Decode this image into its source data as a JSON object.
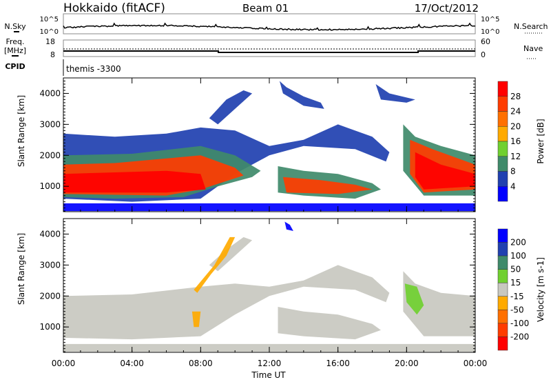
{
  "header": {
    "station": "Hokkaido (fitACF)",
    "beam": "Beam 01",
    "date": "17/Oct/2012"
  },
  "nsky": {
    "label": "N.Sky",
    "ticks": [
      "10^5",
      "10^0"
    ],
    "right_label": "N.Search",
    "right_ticks": [
      "10^5",
      "10^0"
    ]
  },
  "freq": {
    "label1": "Freq.",
    "label2": "[MHz]",
    "ticks": [
      "18",
      "8"
    ],
    "right_label": "Nave",
    "right_ticks": [
      "60",
      "0"
    ]
  },
  "cpid": {
    "label": "CPID",
    "value": "themis -3300"
  },
  "chart_data": [
    {
      "type": "heatmap",
      "title": "Power",
      "ylabel": "Slant Range [km]",
      "xlabel": "Time UT",
      "xlim": [
        0,
        24
      ],
      "ylim": [
        180,
        4500
      ],
      "yticks": [
        "1000",
        "2000",
        "3000",
        "4000"
      ],
      "xticks": [
        "00:00",
        "04:00",
        "08:00",
        "12:00",
        "16:00",
        "20:00",
        "00:00"
      ],
      "colorbar": {
        "label": "Power [dB]",
        "ticks": [
          "4",
          "8",
          "12",
          "16",
          "20",
          "24",
          "28"
        ],
        "colors": [
          "#0000ff",
          "#2040b0",
          "#3f8a6a",
          "#70d030",
          "#ffaa00",
          "#ff7000",
          "#ff3c00",
          "#ff0000"
        ]
      },
      "regions": [
        {
          "level": 1,
          "pts": [
            [
              0,
              2700
            ],
            [
              3,
              2600
            ],
            [
              6,
              2700
            ],
            [
              8,
              2900
            ],
            [
              10,
              2800
            ],
            [
              12,
              2300
            ],
            [
              14,
              2500
            ],
            [
              16,
              3000
            ],
            [
              18,
              2600
            ],
            [
              19,
              2100
            ],
            [
              18.8,
              1800
            ],
            [
              17,
              2200
            ],
            [
              14,
              2300
            ],
            [
              12,
              2000
            ],
            [
              10,
              1400
            ],
            [
              8,
              600
            ],
            [
              4,
              500
            ],
            [
              0,
              600
            ]
          ]
        },
        {
          "level": 2,
          "pts": [
            [
              0,
              2000
            ],
            [
              4,
              2050
            ],
            [
              8,
              2300
            ],
            [
              10,
              2000
            ],
            [
              11.5,
              1500
            ],
            [
              11,
              1300
            ],
            [
              9,
              1000
            ],
            [
              7,
              650
            ],
            [
              3,
              600
            ],
            [
              0,
              650
            ]
          ]
        },
        {
          "level": 6,
          "pts": [
            [
              0,
              1700
            ],
            [
              3,
              1750
            ],
            [
              6,
              1900
            ],
            [
              8,
              2000
            ],
            [
              10,
              1600
            ],
            [
              10.5,
              1350
            ],
            [
              8,
              900
            ],
            [
              6,
              700
            ],
            [
              0,
              750
            ]
          ]
        },
        {
          "level": 7,
          "pts": [
            [
              0,
              1400
            ],
            [
              3,
              1450
            ],
            [
              6,
              1500
            ],
            [
              8,
              1400
            ],
            [
              8.3,
              900
            ],
            [
              6,
              800
            ],
            [
              0,
              800
            ]
          ]
        },
        {
          "level": 2,
          "pts": [
            [
              12.5,
              1650
            ],
            [
              14,
              1500
            ],
            [
              16,
              1400
            ],
            [
              18,
              1100
            ],
            [
              18.5,
              900
            ],
            [
              17,
              600
            ],
            [
              14,
              700
            ],
            [
              12.5,
              800
            ]
          ]
        },
        {
          "level": 6,
          "pts": [
            [
              12.8,
              1300
            ],
            [
              15,
              1200
            ],
            [
              17,
              1050
            ],
            [
              18,
              900
            ],
            [
              16,
              750
            ],
            [
              13,
              800
            ]
          ]
        },
        {
          "level": 2,
          "pts": [
            [
              19.8,
              3000
            ],
            [
              20.5,
              2600
            ],
            [
              22,
              2300
            ],
            [
              24,
              2000
            ],
            [
              24,
              700
            ],
            [
              21,
              700
            ],
            [
              19.8,
              1500
            ]
          ]
        },
        {
          "level": 6,
          "pts": [
            [
              20.2,
              2500
            ],
            [
              21.5,
              2200
            ],
            [
              24,
              1700
            ],
            [
              24,
              900
            ],
            [
              21,
              800
            ],
            [
              20.2,
              1400
            ]
          ]
        },
        {
          "level": 7,
          "pts": [
            [
              20.5,
              2100
            ],
            [
              22,
              1700
            ],
            [
              24,
              1400
            ],
            [
              24,
              1000
            ],
            [
              21,
              900
            ],
            [
              20.5,
              1300
            ]
          ]
        },
        {
          "level": 1,
          "pts": [
            [
              8.5,
              3200
            ],
            [
              9.5,
              3800
            ],
            [
              10.5,
              4100
            ],
            [
              11,
              4000
            ],
            [
              10,
              3500
            ],
            [
              9,
              3000
            ]
          ]
        },
        {
          "level": 1,
          "pts": [
            [
              12.6,
              4400
            ],
            [
              13,
              4200
            ],
            [
              14,
              3900
            ],
            [
              15,
              3700
            ],
            [
              15.2,
              3500
            ],
            [
              14,
              3600
            ],
            [
              12.8,
              4000
            ]
          ]
        },
        {
          "level": 1,
          "pts": [
            [
              18.2,
              4300
            ],
            [
              19,
              4000
            ],
            [
              20.5,
              3800
            ],
            [
              20,
              3700
            ],
            [
              18.5,
              3800
            ]
          ]
        },
        {
          "level": 0,
          "pts": [
            [
              0,
              450
            ],
            [
              24,
              450
            ],
            [
              24,
              200
            ],
            [
              0,
              200
            ]
          ]
        }
      ]
    },
    {
      "type": "heatmap",
      "title": "Velocity",
      "ylabel": "Slant Range [km]",
      "xlabel": "Time UT",
      "xlim": [
        0,
        24
      ],
      "ylim": [
        180,
        4500
      ],
      "yticks": [
        "1000",
        "2000",
        "3000",
        "4000"
      ],
      "xticks": [
        "00:00",
        "04:00",
        "08:00",
        "12:00",
        "16:00",
        "20:00",
        "00:00"
      ],
      "colorbar": {
        "label": "Velocity [m s-1]",
        "ticks": [
          "200",
          "100",
          "50",
          "15",
          "-15",
          "-50",
          "-100",
          "-200"
        ],
        "colors": [
          "#0000ff",
          "#2040b0",
          "#3f8a6a",
          "#70d030",
          "#c8c8c0",
          "#ffaa00",
          "#ff7000",
          "#ff3c00",
          "#ff0000"
        ]
      },
      "regions": [
        {
          "level": 4,
          "pts": [
            [
              0,
              2000
            ],
            [
              4,
              2050
            ],
            [
              8,
              2300
            ],
            [
              10,
              2400
            ],
            [
              12,
              2300
            ],
            [
              14,
              2500
            ],
            [
              16,
              3000
            ],
            [
              18,
              2600
            ],
            [
              19,
              2100
            ],
            [
              18.8,
              1800
            ],
            [
              17,
              2200
            ],
            [
              14,
              2300
            ],
            [
              12,
              2000
            ],
            [
              10,
              1400
            ],
            [
              8,
              700
            ],
            [
              4,
              600
            ],
            [
              0,
              650
            ]
          ]
        },
        {
          "level": 4,
          "pts": [
            [
              12.5,
              1650
            ],
            [
              14,
              1500
            ],
            [
              16,
              1400
            ],
            [
              18,
              1100
            ],
            [
              18.5,
              900
            ],
            [
              17,
              600
            ],
            [
              14,
              700
            ],
            [
              12.5,
              800
            ]
          ]
        },
        {
          "level": 4,
          "pts": [
            [
              19.8,
              2800
            ],
            [
              20.5,
              2400
            ],
            [
              22,
              2100
            ],
            [
              24,
              2000
            ],
            [
              24,
              700
            ],
            [
              21,
              700
            ],
            [
              19.8,
              1500
            ]
          ]
        },
        {
          "level": 4,
          "pts": [
            [
              8.5,
              3000
            ],
            [
              9.5,
              3500
            ],
            [
              10.5,
              3900
            ],
            [
              11,
              3800
            ],
            [
              10,
              3300
            ],
            [
              9,
              2800
            ]
          ]
        },
        {
          "level": 5,
          "pts": [
            [
              7.8,
              2100
            ],
            [
              8.6,
              2700
            ],
            [
              9.5,
              3300
            ],
            [
              10,
              3900
            ],
            [
              9.7,
              3900
            ],
            [
              8.8,
              3000
            ],
            [
              7.6,
              2200
            ]
          ]
        },
        {
          "level": 5,
          "pts": [
            [
              7.5,
              1500
            ],
            [
              8,
              1500
            ],
            [
              7.9,
              1000
            ],
            [
              7.6,
              1000
            ]
          ]
        },
        {
          "level": 3,
          "pts": [
            [
              19.9,
              2400
            ],
            [
              20.6,
              2300
            ],
            [
              21,
              1700
            ],
            [
              20.6,
              1400
            ],
            [
              20,
              1800
            ]
          ]
        },
        {
          "level": 0,
          "pts": [
            [
              12.9,
              4400
            ],
            [
              13.2,
              4300
            ],
            [
              13.4,
              4100
            ],
            [
              13,
              4150
            ]
          ]
        },
        {
          "level": 4,
          "pts": [
            [
              0,
              450
            ],
            [
              24,
              450
            ],
            [
              24,
              200
            ],
            [
              0,
              200
            ]
          ]
        }
      ]
    }
  ]
}
